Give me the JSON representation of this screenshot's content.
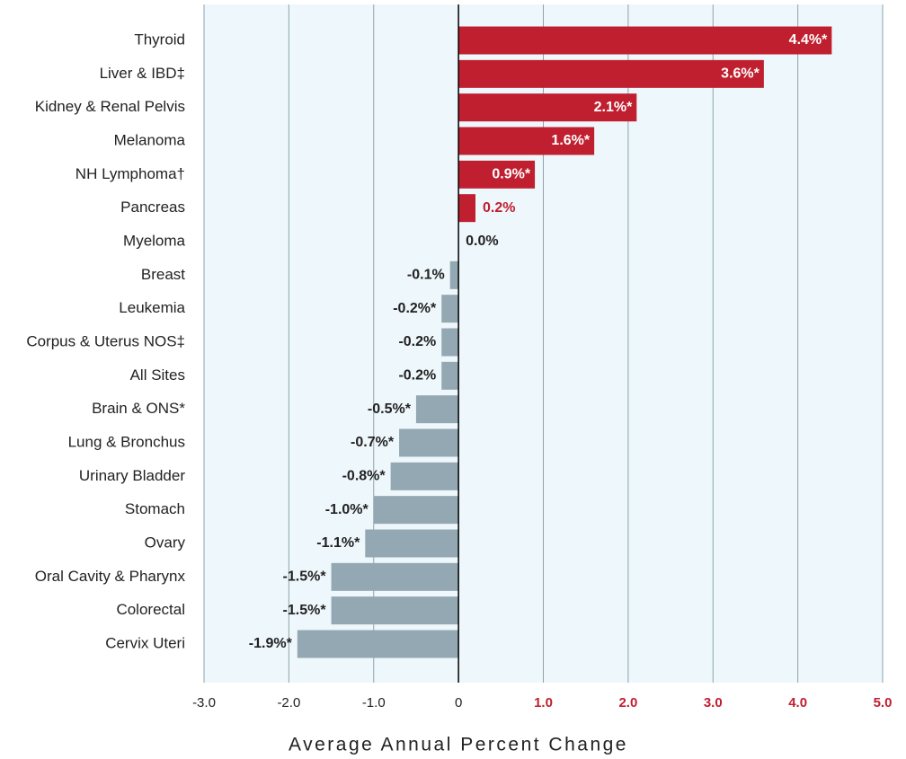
{
  "chart_data": {
    "type": "hbar",
    "x_label": "Average Annual Percent Change",
    "categories": [
      "Thyroid",
      "Liver & IBD‡",
      "Kidney & Renal Pelvis",
      "Melanoma",
      "NH Lymphoma†",
      "Pancreas",
      "Myeloma",
      "Breast",
      "Leukemia",
      "Corpus & Uterus NOS‡",
      "All Sites",
      "Brain & ONS*",
      "Lung & Bronchus",
      "Urinary Bladder",
      "Stomach",
      "Ovary",
      "Oral Cavity & Pharynx",
      "Colorectal",
      "Cervix Uteri"
    ],
    "values": [
      4.4,
      3.6,
      2.1,
      1.6,
      0.9,
      0.2,
      0.0,
      -0.1,
      -0.2,
      -0.2,
      -0.2,
      -0.5,
      -0.7,
      -0.8,
      -1.0,
      -1.1,
      -1.5,
      -1.5,
      -1.9
    ],
    "value_labels": [
      "4.4%*",
      "3.6%*",
      "2.1%*",
      "1.6%*",
      "0.9%*",
      "0.2%",
      "0.0%",
      "-0.1%",
      "-0.2%*",
      "-0.2%",
      "-0.2%",
      "-0.5%*",
      "-0.7%*",
      "-0.8%*",
      "-1.0%*",
      "-1.1%*",
      "-1.5%*",
      "-1.5%*",
      "-1.9%*"
    ],
    "positive_color": "#c01f2f",
    "negative_color": "#93a8b2",
    "xlim": [
      -3.0,
      5.0
    ],
    "xticks": [
      {
        "value": -3,
        "label": "-3.0"
      },
      {
        "value": -2,
        "label": "-2.0"
      },
      {
        "value": -1,
        "label": "-1.0"
      },
      0,
      {
        "value": 1,
        "label": "1.0"
      },
      {
        "value": 2,
        "label": "2.0"
      },
      {
        "value": 3,
        "label": "3.0"
      },
      {
        "value": 4,
        "label": "4.0"
      },
      {
        "value": 5,
        "label": "5.0"
      }
    ],
    "grid": true
  }
}
